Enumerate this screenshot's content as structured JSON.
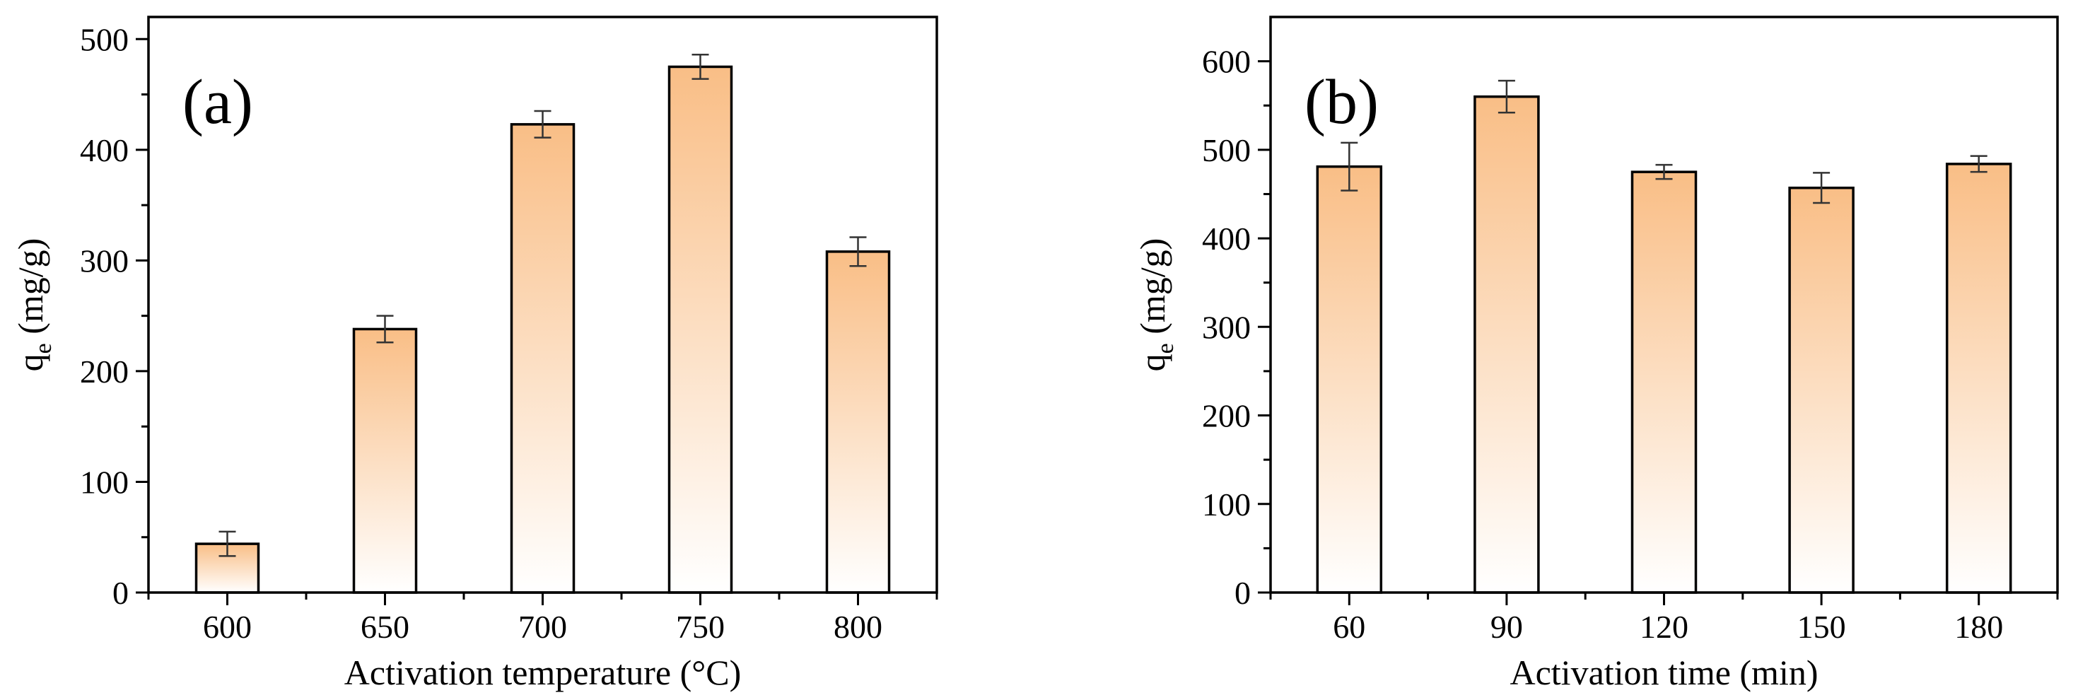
{
  "chart_data": [
    {
      "type": "bar",
      "panel_label": "(a)",
      "categories": [
        "600",
        "650",
        "700",
        "750",
        "800"
      ],
      "values": [
        44,
        238,
        423,
        475,
        308
      ],
      "errors": [
        11,
        12,
        12,
        11,
        13
      ],
      "xlabel": "Activation temperature (°C)",
      "ylabel_main": "q",
      "ylabel_sub": "e",
      "ylabel_unit": " (mg/g)",
      "ylim": [
        0,
        520
      ],
      "yticks": [
        0,
        100,
        200,
        300,
        400,
        500
      ],
      "bar_color_top": "#F9BE86",
      "bar_color_bottom": "#FFFFFF"
    },
    {
      "type": "bar",
      "panel_label": "(b)",
      "categories": [
        "60",
        "90",
        "120",
        "150",
        "180"
      ],
      "values": [
        481,
        560,
        475,
        457,
        484
      ],
      "errors": [
        27,
        18,
        8,
        17,
        9
      ],
      "xlabel": "Activation time (min)",
      "ylabel_main": "q",
      "ylabel_sub": "e",
      "ylabel_unit": " (mg/g)",
      "ylim": [
        0,
        650
      ],
      "yticks": [
        0,
        100,
        200,
        300,
        400,
        500,
        600
      ],
      "bar_color_top": "#F9BE86",
      "bar_color_bottom": "#FFFFFF"
    }
  ]
}
